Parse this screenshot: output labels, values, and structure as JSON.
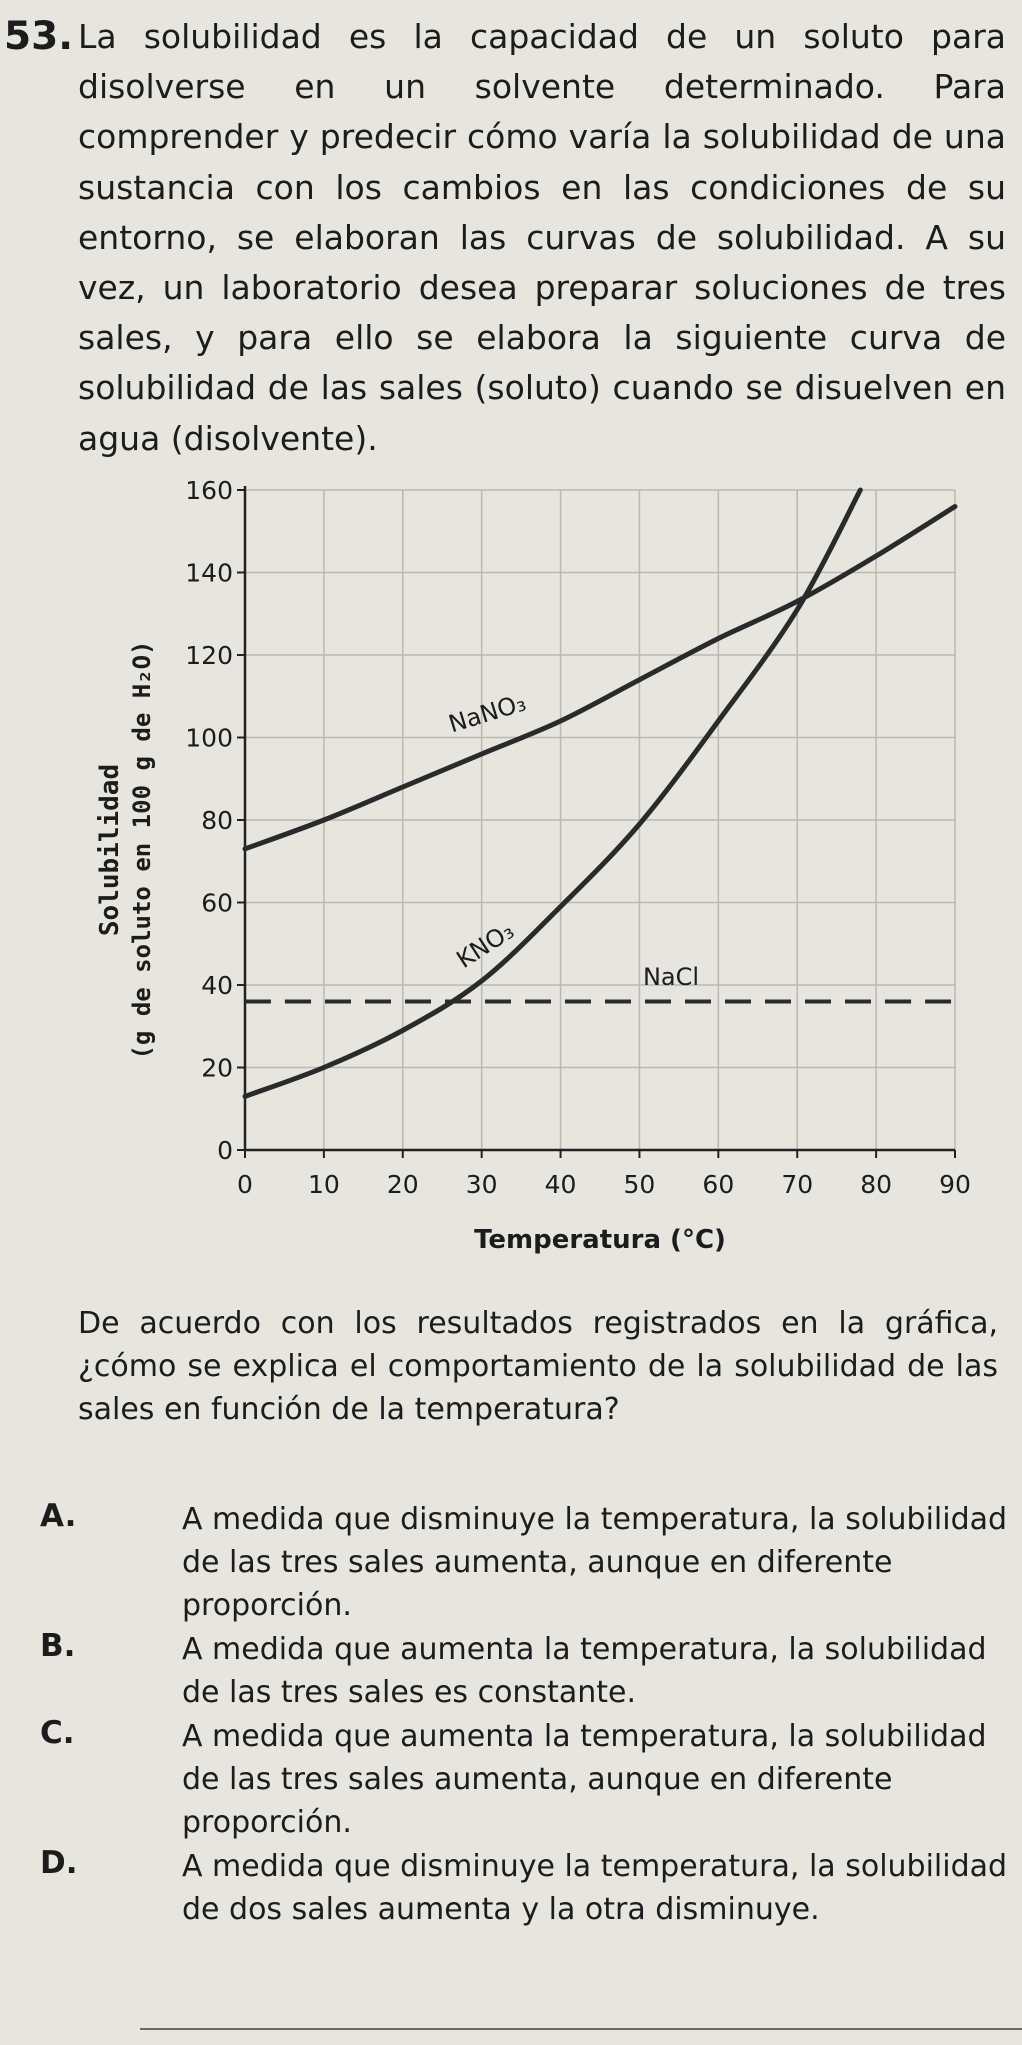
{
  "question": {
    "number": "53.",
    "stem": "La solubilidad es la capacidad de un soluto para disolverse en un solvente determinado. Para comprender y predecir cómo varía la solubilidad de una sustancia con los cambios en las condiciones de su entorno, se elaboran las curvas de solubilidad. A su vez, un laboratorio desea preparar soluciones de tres sales, y para ello se elabora la siguiente curva de solubilidad de las sales (soluto) cuando se disuelven en agua (disolvente).",
    "prompt": "De acuerdo con los resultados registrados en la gráfica, ¿cómo se explica el comportamiento de la solubilidad de las sales en función de la temperatura?",
    "options": [
      {
        "letter": "A.",
        "text": "A medida que disminuye la temperatura, la solubilidad de las tres sales aumenta, aunque en diferente proporción."
      },
      {
        "letter": "B.",
        "text": "A medida que aumenta la temperatura, la solubilidad de las tres sales es constante."
      },
      {
        "letter": "C.",
        "text": "A medida que aumenta la temperatura, la solubilidad de las tres sales aumenta, aunque en diferente proporción."
      },
      {
        "letter": "D.",
        "text": "A medida que disminuye la temperatura, la solubilidad de dos sales aumenta y la otra disminuye."
      }
    ]
  },
  "chart_data": {
    "type": "line",
    "xlabel": "Temperatura (°C)",
    "ylabel_line1": "Solubilidad",
    "ylabel_line2": "(g de soluto en 100 g de H₂O)",
    "xlim": [
      0,
      90
    ],
    "ylim": [
      0,
      160
    ],
    "xticks": [
      0,
      10,
      20,
      30,
      40,
      50,
      60,
      70,
      80,
      90
    ],
    "yticks": [
      0,
      20,
      40,
      60,
      80,
      100,
      120,
      140,
      160
    ],
    "grid": true,
    "series": [
      {
        "name": "NaNO₃",
        "style": "solid",
        "color": "#2a2a2a",
        "x": [
          0,
          10,
          20,
          30,
          40,
          50,
          60,
          70,
          80,
          90
        ],
        "y": [
          73,
          80,
          88,
          96,
          104,
          114,
          124,
          133,
          144,
          156
        ]
      },
      {
        "name": "KNO₃",
        "style": "solid",
        "color": "#2a2a2a",
        "x": [
          0,
          10,
          20,
          30,
          40,
          50,
          60,
          70,
          78
        ],
        "y": [
          13,
          20,
          29,
          41,
          59,
          79,
          104,
          131,
          160
        ]
      },
      {
        "name": "NaCl",
        "style": "dashed",
        "color": "#2a2a2a",
        "x": [
          0,
          10,
          20,
          30,
          40,
          50,
          60,
          70,
          80,
          90
        ],
        "y": [
          36,
          36,
          36,
          36,
          36,
          36,
          36,
          36,
          36,
          36
        ]
      }
    ]
  }
}
